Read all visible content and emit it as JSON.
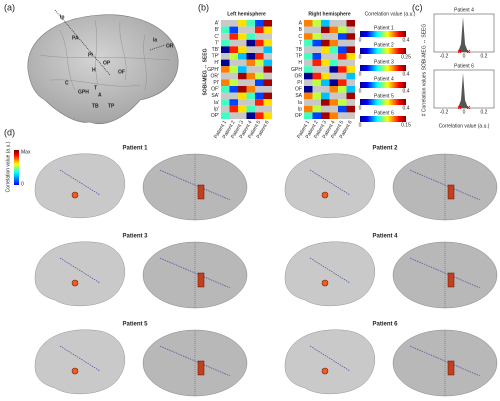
{
  "panels": {
    "a": "(a)",
    "b": "(b)",
    "c": "(c)",
    "d": "(d)"
  },
  "brain_labels": [
    "Ip",
    "PA",
    "PI",
    "OP",
    "H",
    "OF",
    "C",
    "GPH",
    "T",
    "A",
    "TB",
    "TP",
    "Ia",
    "OR"
  ],
  "heatmap": {
    "y_label": "SOBI-MEG ↔ SEEG",
    "left": {
      "title": "Left hemisphere",
      "rows": [
        "A'",
        "B'",
        "C'",
        "T'",
        "TB'",
        "TP'",
        "H'",
        "GPH'",
        "OR'",
        "PI'",
        "OF'",
        "SA'",
        "Ia'",
        "Ip'",
        "OP'"
      ]
    },
    "right": {
      "title": "Right hemisphere",
      "rows": [
        "A",
        "B",
        "C",
        "T",
        "TB",
        "TP",
        "H",
        "GPH",
        "OR",
        "PI",
        "OF",
        "SA",
        "Ia",
        "Ip",
        "OP"
      ]
    },
    "columns": [
      "Patient 1",
      "Patient 2",
      "Patient 3",
      "Patient 4",
      "Patient 5",
      "Patient 6"
    ],
    "colorbar": {
      "title": "Correlation value (a.u.)",
      "bars": [
        {
          "label": "Patient 1",
          "min": "0",
          "max": "0.4"
        },
        {
          "label": "Patient 2",
          "min": "0",
          "max": "0.25"
        },
        {
          "label": "Patient 3",
          "min": "0",
          "max": "0.4"
        },
        {
          "label": "Patient 4",
          "min": "0",
          "max": "0.4"
        },
        {
          "label": "Patient 5",
          "min": "0",
          "max": "0.4"
        },
        {
          "label": "Patient 6",
          "min": "0",
          "max": "0.15"
        }
      ]
    }
  },
  "histograms": {
    "y_label": "# Correlation values SOBI-MEG ↔ SEEG",
    "x_label": "Correlation value (a.u.)",
    "plots": [
      {
        "title": "Patient 4"
      },
      {
        "title": "Patient 6"
      }
    ],
    "xticks": [
      "-0.2",
      "0",
      "0.2"
    ]
  },
  "brains": {
    "patients": [
      "Patient 1",
      "Patient 2",
      "Patient 3",
      "Patient 4",
      "Patient 5",
      "Patient 6"
    ],
    "colorbar": {
      "title": "Correlation value (a.u.)",
      "max": "Max",
      "min": "0"
    }
  }
}
